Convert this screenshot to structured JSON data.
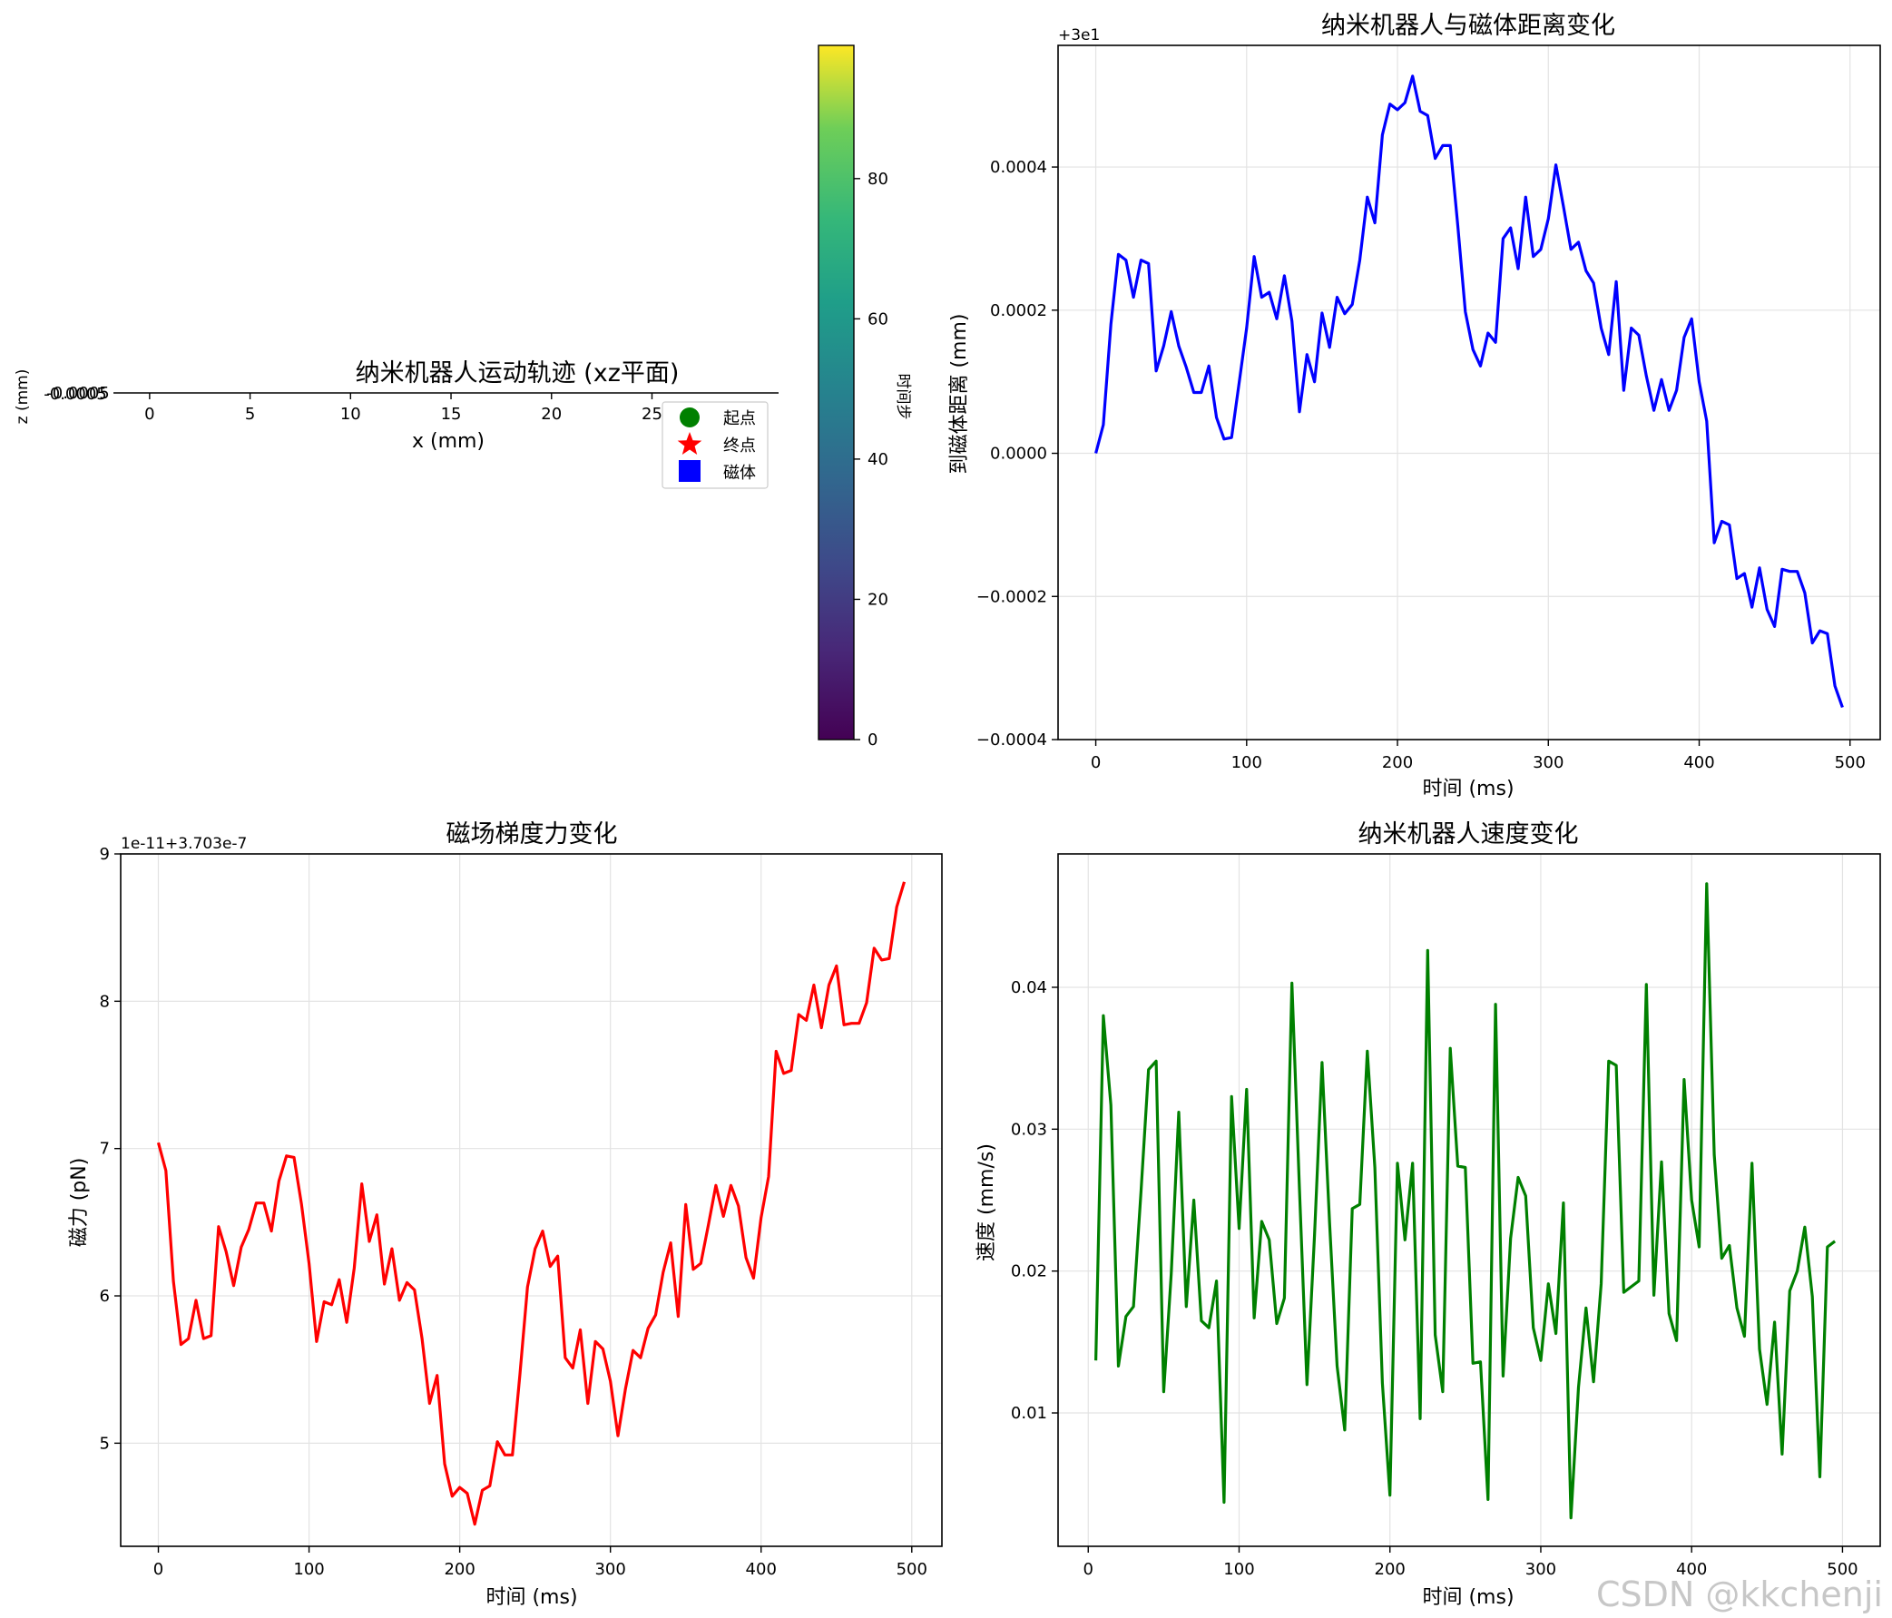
{
  "watermark": "CSDN @kkchenji",
  "colors": {
    "distance": "#0000ff",
    "force": "#ff0000",
    "speed": "#008000",
    "start": "#008000",
    "end": "#ff0000",
    "magnet": "#0000ff"
  },
  "chart_data": [
    {
      "type": "scatter",
      "title": "纳米机器人运动轨迹 (xz平面)",
      "xlabel": "x (mm)",
      "ylabel": "z (mm)",
      "xlim": [
        -1.8,
        31.3
      ],
      "xticks": [
        "0",
        "5",
        "10",
        "15",
        "20",
        "25"
      ],
      "ytick_label": "-0.0005",
      "legend": [
        "起点",
        "终点",
        "磁体"
      ],
      "legend_placement": "right",
      "colorbar": {
        "label": "时间步",
        "ticks": [
          "0",
          "20",
          "40",
          "60",
          "80"
        ],
        "range": [
          0,
          99
        ],
        "colormap": "viridis"
      }
    },
    {
      "type": "line",
      "title": "纳米机器人与磁体距离变化",
      "xlabel": "时间 (ms)",
      "ylabel": "到磁体距离 (mm)",
      "offset_label": "+3e1",
      "xlim": [
        -25,
        520
      ],
      "ylim": [
        -0.0004,
        0.00057
      ],
      "xticks": [
        0,
        100,
        200,
        300,
        400,
        500
      ],
      "yticks": [
        -0.0004,
        -0.0002,
        0.0,
        0.0002,
        0.0004
      ],
      "ytick_labels": [
        "−0.0004",
        "−0.0002",
        "0.0000",
        "0.0002",
        "0.0004"
      ],
      "grid": true,
      "x": [
        0,
        5,
        10,
        15,
        20,
        25,
        30,
        35,
        40,
        45,
        50,
        55,
        60,
        65,
        70,
        75,
        80,
        85,
        90,
        95,
        100,
        105,
        110,
        115,
        120,
        125,
        130,
        135,
        140,
        145,
        150,
        155,
        160,
        165,
        170,
        175,
        180,
        185,
        190,
        195,
        200,
        205,
        210,
        215,
        220,
        225,
        230,
        235,
        240,
        245,
        250,
        255,
        260,
        265,
        270,
        275,
        280,
        285,
        290,
        295,
        300,
        305,
        310,
        315,
        320,
        325,
        330,
        335,
        340,
        345,
        350,
        355,
        360,
        365,
        370,
        375,
        380,
        385,
        390,
        395,
        400,
        405,
        410,
        415,
        420,
        425,
        430,
        435,
        440,
        445,
        450,
        455,
        460,
        465,
        470,
        475,
        480,
        485,
        490,
        495
      ],
      "y": [
        0.0,
        4e-05,
        0.00018,
        0.000278,
        0.00027,
        0.000218,
        0.00027,
        0.000265,
        0.000115,
        0.00015,
        0.000198,
        0.00015,
        0.00012,
        8.5e-05,
        8.5e-05,
        0.000122,
        5e-05,
        2e-05,
        2.2e-05,
        9.8e-05,
        0.000175,
        0.000275,
        0.000218,
        0.000225,
        0.000188,
        0.000248,
        0.000185,
        5.8e-05,
        0.000138,
        0.0001,
        0.000196,
        0.000148,
        0.000218,
        0.000195,
        0.000208,
        0.00027,
        0.000358,
        0.000322,
        0.000445,
        0.000488,
        0.00048,
        0.00049,
        0.000527,
        0.000478,
        0.000472,
        0.000412,
        0.00043,
        0.00043,
        0.000318,
        0.000198,
        0.000145,
        0.000122,
        0.000168,
        0.000155,
        0.0003,
        0.000315,
        0.000258,
        0.000358,
        0.000275,
        0.000285,
        0.000328,
        0.000403,
        0.000345,
        0.000285,
        0.000295,
        0.000255,
        0.000238,
        0.000175,
        0.000138,
        0.00024,
        8.8e-05,
        0.000175,
        0.000165,
        0.000108,
        6e-05,
        0.000103,
        6e-05,
        8.8e-05,
        0.000162,
        0.000188,
        0.0001,
        4.5e-05,
        -0.000125,
        -9.5e-05,
        -0.0001,
        -0.000175,
        -0.000168,
        -0.000215,
        -0.00016,
        -0.000218,
        -0.000242,
        -0.000162,
        -0.000165,
        -0.000165,
        -0.000195,
        -0.000265,
        -0.000248,
        -0.000252,
        -0.000325,
        -0.000355
      ]
    },
    {
      "type": "line",
      "title": "磁场梯度力变化",
      "xlabel": "时间 (ms)",
      "ylabel": "磁力 (pN)",
      "offset_label": "1e-11+3.703e-7",
      "xlim": [
        -25,
        520
      ],
      "ylim": [
        4.3,
        9.0
      ],
      "xticks": [
        0,
        100,
        200,
        300,
        400,
        500
      ],
      "yticks": [
        5,
        6,
        7,
        8,
        9
      ],
      "grid": true,
      "x": [
        0,
        5,
        10,
        15,
        20,
        25,
        30,
        35,
        40,
        45,
        50,
        55,
        60,
        65,
        70,
        75,
        80,
        85,
        90,
        95,
        100,
        105,
        110,
        115,
        120,
        125,
        130,
        135,
        140,
        145,
        150,
        155,
        160,
        165,
        170,
        175,
        180,
        185,
        190,
        195,
        200,
        205,
        210,
        215,
        220,
        225,
        230,
        235,
        240,
        245,
        250,
        255,
        260,
        265,
        270,
        275,
        280,
        285,
        290,
        295,
        300,
        305,
        310,
        315,
        320,
        325,
        330,
        335,
        340,
        345,
        350,
        355,
        360,
        365,
        370,
        375,
        380,
        385,
        390,
        395,
        400,
        405,
        410,
        415,
        420,
        425,
        430,
        435,
        440,
        445,
        450,
        455,
        460,
        465,
        470,
        475,
        480,
        485,
        490,
        495
      ],
      "y": [
        7.04,
        6.85,
        6.1,
        5.67,
        5.71,
        5.97,
        5.71,
        5.73,
        6.47,
        6.3,
        6.07,
        6.33,
        6.45,
        6.63,
        6.63,
        6.44,
        6.78,
        6.95,
        6.94,
        6.62,
        6.22,
        5.69,
        5.96,
        5.94,
        6.11,
        5.82,
        6.19,
        6.76,
        6.37,
        6.55,
        6.08,
        6.32,
        5.97,
        6.09,
        6.04,
        5.71,
        5.27,
        5.46,
        4.86,
        4.64,
        4.7,
        4.66,
        4.45,
        4.68,
        4.71,
        5.01,
        4.92,
        4.92,
        5.47,
        6.06,
        6.32,
        6.44,
        6.2,
        6.27,
        5.58,
        5.51,
        5.77,
        5.27,
        5.69,
        5.64,
        5.42,
        5.05,
        5.37,
        5.63,
        5.58,
        5.78,
        5.87,
        6.16,
        6.36,
        5.86,
        6.62,
        6.18,
        6.22,
        6.48,
        6.75,
        6.54,
        6.75,
        6.61,
        6.26,
        6.12,
        6.53,
        6.81,
        7.66,
        7.51,
        7.53,
        7.91,
        7.87,
        8.11,
        7.82,
        8.11,
        8.24,
        7.84,
        7.85,
        7.85,
        7.99,
        8.36,
        8.28,
        8.29,
        8.64,
        8.81
      ]
    },
    {
      "type": "line",
      "title": "纳米机器人速度变化",
      "xlabel": "时间 (ms)",
      "ylabel": "速度 (mm/s)",
      "xlim": [
        -20,
        525
      ],
      "ylim": [
        0.0006,
        0.0494
      ],
      "xticks": [
        0,
        100,
        200,
        300,
        400,
        500
      ],
      "yticks": [
        0.01,
        0.02,
        0.03,
        0.04
      ],
      "ytick_labels": [
        "0.01",
        "0.02",
        "0.03",
        "0.04"
      ],
      "grid": true,
      "x": [
        5,
        10,
        15,
        20,
        25,
        30,
        35,
        40,
        45,
        50,
        55,
        60,
        65,
        70,
        75,
        80,
        85,
        90,
        95,
        100,
        105,
        110,
        115,
        120,
        125,
        130,
        135,
        140,
        145,
        150,
        155,
        160,
        165,
        170,
        175,
        180,
        185,
        190,
        195,
        200,
        205,
        210,
        215,
        220,
        225,
        230,
        235,
        240,
        245,
        250,
        255,
        260,
        265,
        270,
        275,
        280,
        285,
        290,
        295,
        300,
        305,
        310,
        315,
        320,
        325,
        330,
        335,
        340,
        345,
        350,
        355,
        360,
        365,
        370,
        375,
        380,
        385,
        390,
        395,
        400,
        405,
        410,
        415,
        420,
        425,
        430,
        435,
        440,
        445,
        450,
        455,
        460,
        465,
        470,
        475,
        480,
        485,
        490,
        495
      ],
      "y": [
        0.0137,
        0.038,
        0.0317,
        0.0133,
        0.0168,
        0.0175,
        0.0256,
        0.0342,
        0.0348,
        0.0115,
        0.0198,
        0.0312,
        0.0175,
        0.025,
        0.0165,
        0.016,
        0.0193,
        0.0037,
        0.0323,
        0.023,
        0.0328,
        0.0167,
        0.0235,
        0.0222,
        0.0163,
        0.0181,
        0.0403,
        0.0258,
        0.012,
        0.0225,
        0.0347,
        0.0234,
        0.0133,
        0.0088,
        0.0244,
        0.0247,
        0.0355,
        0.0273,
        0.0121,
        0.0042,
        0.0276,
        0.0222,
        0.0276,
        0.0096,
        0.0426,
        0.0155,
        0.0115,
        0.0357,
        0.0274,
        0.0273,
        0.0135,
        0.0136,
        0.0039,
        0.0388,
        0.0126,
        0.0223,
        0.0266,
        0.0253,
        0.016,
        0.0137,
        0.0191,
        0.0156,
        0.0248,
        0.0026,
        0.0118,
        0.0174,
        0.0122,
        0.0191,
        0.0348,
        0.0345,
        0.0185,
        0.0189,
        0.0193,
        0.0402,
        0.0183,
        0.0277,
        0.017,
        0.0151,
        0.0335,
        0.025,
        0.0217,
        0.0473,
        0.0282,
        0.0209,
        0.0218,
        0.0174,
        0.0154,
        0.0276,
        0.0145,
        0.0106,
        0.0164,
        0.0071,
        0.0186,
        0.02,
        0.0231,
        0.0182,
        0.0055,
        0.0217,
        0.0221
      ]
    }
  ]
}
